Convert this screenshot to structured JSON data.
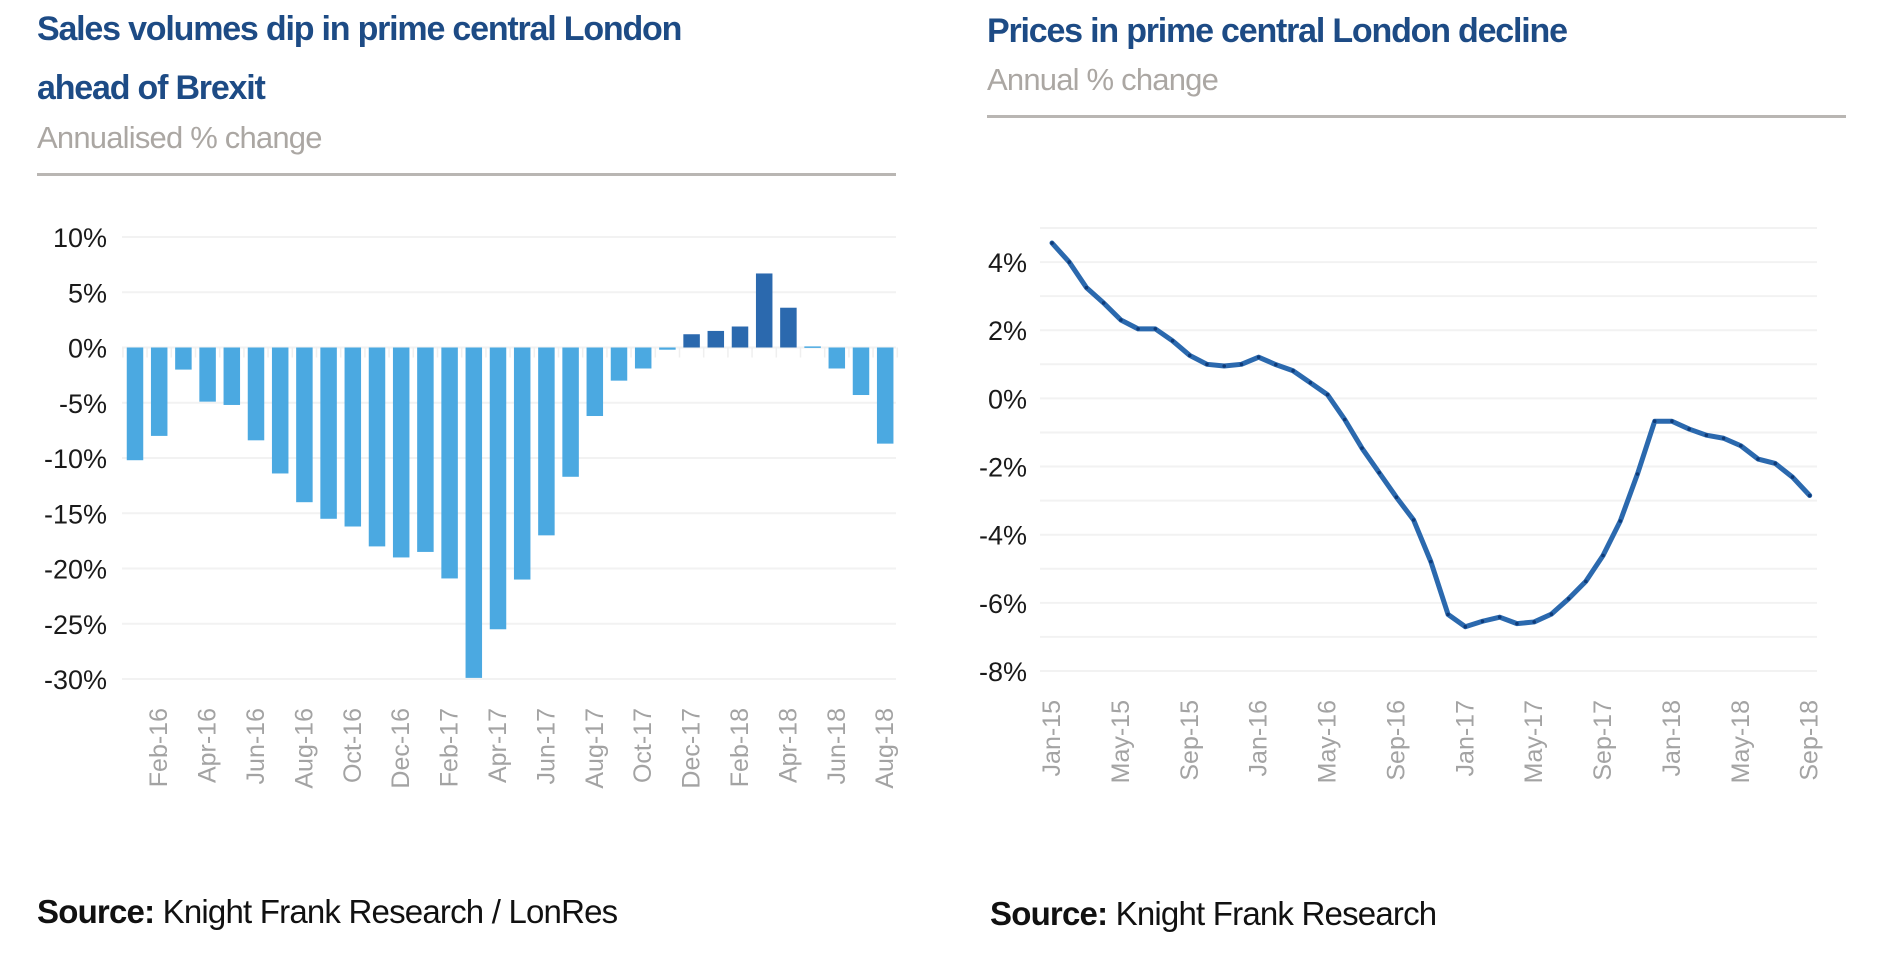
{
  "chart_data": [
    {
      "type": "bar",
      "title": "Sales volumes dip in prime central London ahead of Brexit",
      "title_lines": [
        "Sales volumes dip in prime central London",
        "ahead of Brexit"
      ],
      "subtitle": "Annualised % change",
      "xlabel": "",
      "ylabel": "",
      "ylim": [
        -30,
        10
      ],
      "yticks": [
        10,
        5,
        0,
        -5,
        -10,
        -15,
        -20,
        -25,
        -30
      ],
      "ytick_labels": [
        "10%",
        "5%",
        "0%",
        "-5%",
        "-10%",
        "-15%",
        "-20%",
        "-25%",
        "-30%"
      ],
      "grid": true,
      "categories": [
        "Jan-16",
        "Feb-16",
        "Mar-16",
        "Apr-16",
        "May-16",
        "Jun-16",
        "Jul-16",
        "Aug-16",
        "Sep-16",
        "Oct-16",
        "Nov-16",
        "Dec-16",
        "Jan-17",
        "Feb-17",
        "Mar-17",
        "Apr-17",
        "May-17",
        "Jun-17",
        "Jul-17",
        "Aug-17",
        "Sep-17",
        "Oct-17",
        "Nov-17",
        "Dec-17",
        "Jan-18",
        "Feb-18",
        "Mar-18",
        "Apr-18",
        "May-18",
        "Jun-18",
        "Jul-18",
        "Aug-18"
      ],
      "xtick_labels": [
        "Feb-16",
        "Apr-16",
        "Jun-16",
        "Aug-16",
        "Oct-16",
        "Dec-16",
        "Feb-17",
        "Apr-17",
        "Jun-17",
        "Aug-17",
        "Oct-17",
        "Dec-17",
        "Feb-18",
        "Apr-18",
        "Jun-18",
        "Aug-18"
      ],
      "values": [
        -10.2,
        -8.0,
        -2.0,
        -4.9,
        -5.2,
        -8.4,
        -11.4,
        -14.0,
        -15.5,
        -16.2,
        -18.0,
        -19.0,
        -18.5,
        -20.9,
        -29.9,
        -25.5,
        -21.0,
        -17.0,
        -11.7,
        -6.2,
        -3.0,
        -1.9,
        -0.2,
        1.2,
        1.5,
        1.9,
        6.7,
        3.6,
        0.1,
        -1.9,
        -4.3,
        -8.7
      ],
      "highlight_categories": [
        "Dec-17",
        "Jan-18",
        "Feb-18",
        "Mar-18",
        "Apr-18"
      ],
      "colors": {
        "bar": "#4BA9E1",
        "highlight": "#2B69AE",
        "grid": "#F2F2F2"
      },
      "source_label": "Source:",
      "source": "Knight Frank Research / LonRes"
    },
    {
      "type": "line",
      "title": "Prices in prime central London decline",
      "subtitle": "Annual % change",
      "xlabel": "",
      "ylabel": "",
      "ylim": [
        -8,
        5
      ],
      "yticks": [
        4,
        2,
        0,
        -2,
        -4,
        -6,
        -8
      ],
      "ytick_labels": [
        "4%",
        "2%",
        "0%",
        "-2%",
        "-4%",
        "-6%",
        "-8%"
      ],
      "grid": true,
      "x": [
        "Jan-15",
        "Feb-15",
        "Mar-15",
        "Apr-15",
        "May-15",
        "Jun-15",
        "Jul-15",
        "Aug-15",
        "Sep-15",
        "Oct-15",
        "Nov-15",
        "Dec-15",
        "Jan-16",
        "Feb-16",
        "Mar-16",
        "Apr-16",
        "May-16",
        "Jun-16",
        "Jul-16",
        "Aug-16",
        "Sep-16",
        "Oct-16",
        "Nov-16",
        "Dec-16",
        "Jan-17",
        "Feb-17",
        "Mar-17",
        "Apr-17",
        "May-17",
        "Jun-17",
        "Jul-17",
        "Aug-17",
        "Sep-17",
        "Oct-17",
        "Nov-17",
        "Dec-17",
        "Jan-18",
        "Feb-18",
        "Mar-18",
        "Apr-18",
        "May-18",
        "Jun-18",
        "Jul-18",
        "Aug-18",
        "Sep-18"
      ],
      "xtick_labels": [
        "Jan-15",
        "May-15",
        "Sep-15",
        "Jan-16",
        "May-16",
        "Sep-16",
        "Jan-17",
        "May-17",
        "Sep-17",
        "Jan-18",
        "May-18",
        "Sep-18"
      ],
      "series": [
        {
          "name": "Annual % change",
          "color": "#2B69AE",
          "values": [
            4.56,
            4.0,
            3.25,
            2.8,
            2.3,
            2.04,
            2.04,
            1.69,
            1.26,
            1.0,
            0.95,
            1.0,
            1.21,
            0.99,
            0.81,
            0.46,
            0.11,
            -0.62,
            -1.46,
            -2.18,
            -2.9,
            -3.57,
            -4.79,
            -6.34,
            -6.7,
            -6.54,
            -6.42,
            -6.61,
            -6.56,
            -6.33,
            -5.88,
            -5.37,
            -4.61,
            -3.6,
            -2.22,
            -0.67,
            -0.67,
            -0.9,
            -1.08,
            -1.17,
            -1.39,
            -1.78,
            -1.91,
            -2.31,
            -2.85
          ]
        }
      ],
      "source_label": "Source:",
      "source": "Knight Frank Research"
    }
  ]
}
